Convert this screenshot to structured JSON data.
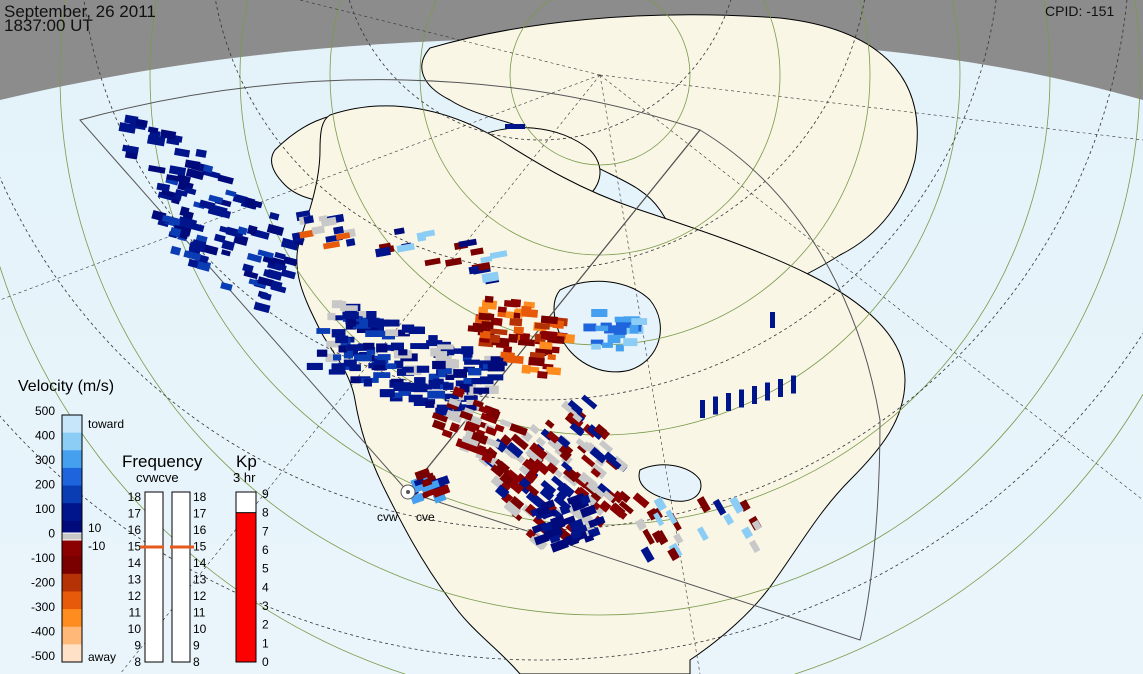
{
  "header": {
    "date": "September, 26 2011",
    "time": "1837:00 UT",
    "cpid": "CPID:  -151"
  },
  "radars": [
    "cvw",
    "cve"
  ],
  "velocity_scale": {
    "title": "Velocity (m/s)",
    "ticks": [
      "500",
      "400",
      "300",
      "200",
      "100",
      "0",
      "-100",
      "-200",
      "-300",
      "-400",
      "-500"
    ],
    "toward": "toward",
    "away": "away",
    "ground_scatter_upper": "10",
    "ground_scatter_lower": "-10",
    "colors": [
      "#ffe1c8",
      "#ffb878",
      "#ff8c1e",
      "#e65a0a",
      "#b43205",
      "#7a0000",
      "#8b0000",
      "#000a7a",
      "#00148c",
      "#0a3cb4",
      "#1e64dc",
      "#46a0f0",
      "#8ccdf5",
      "#c8e6fa"
    ]
  },
  "frequency": {
    "title": "Frequency",
    "subtitle": "cvwcve",
    "left_ticks": [
      "18",
      "17",
      "16",
      "15",
      "14",
      "13",
      "12",
      "11",
      "10",
      "9",
      "8"
    ],
    "right_ticks": [
      "18",
      "17",
      "16",
      "15",
      "14",
      "13",
      "12",
      "11",
      "10",
      "9",
      "8"
    ],
    "cvw_mhz": 15,
    "cve_mhz": 15,
    "marker_color": "#e65a1e"
  },
  "kp": {
    "title": "Kp",
    "subtitle": "3 hr",
    "ticks": [
      "9",
      "8",
      "7",
      "6",
      "5",
      "4",
      "3",
      "2",
      "1",
      "0"
    ],
    "value": 8,
    "fill_color": "#ff0000",
    "cap_color": "#c81414"
  },
  "colors": {
    "land": "#f9f6e6",
    "ocean": "#e6f3fa",
    "night": "#8c8c8c",
    "ground_scatter": "#c8c8c8"
  }
}
